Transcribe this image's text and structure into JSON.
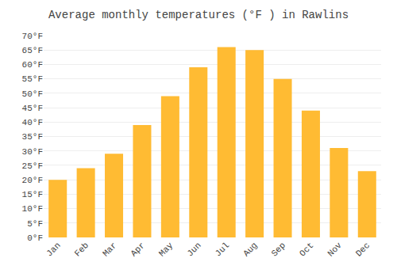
{
  "chart_data": {
    "type": "bar",
    "title": "Average monthly temperatures (°F ) in Rawlins",
    "categories": [
      "Jan",
      "Feb",
      "Mar",
      "Apr",
      "May",
      "Jun",
      "Jul",
      "Aug",
      "Sep",
      "Oct",
      "Nov",
      "Dec"
    ],
    "values": [
      20,
      24,
      29,
      39,
      49,
      59,
      66,
      65,
      55,
      44,
      31,
      23
    ],
    "color": "#FFBB33",
    "ylim": [
      0,
      70
    ],
    "yticks": [
      {
        "value": 0,
        "label": "0°F"
      },
      {
        "value": 5,
        "label": "5°F"
      },
      {
        "value": 10,
        "label": "10°F"
      },
      {
        "value": 15,
        "label": "15°F"
      },
      {
        "value": 20,
        "label": "20°F"
      },
      {
        "value": 25,
        "label": "25°F"
      },
      {
        "value": 30,
        "label": "30°F"
      },
      {
        "value": 35,
        "label": "35°F"
      },
      {
        "value": 40,
        "label": "40°F"
      },
      {
        "value": 45,
        "label": "45°F"
      },
      {
        "value": 50,
        "label": "50°F"
      },
      {
        "value": 55,
        "label": "55°F"
      },
      {
        "value": 60,
        "label": "60°F"
      },
      {
        "value": 65,
        "label": "65°F"
      },
      {
        "value": 70,
        "label": "70°F"
      }
    ],
    "grid": true
  }
}
